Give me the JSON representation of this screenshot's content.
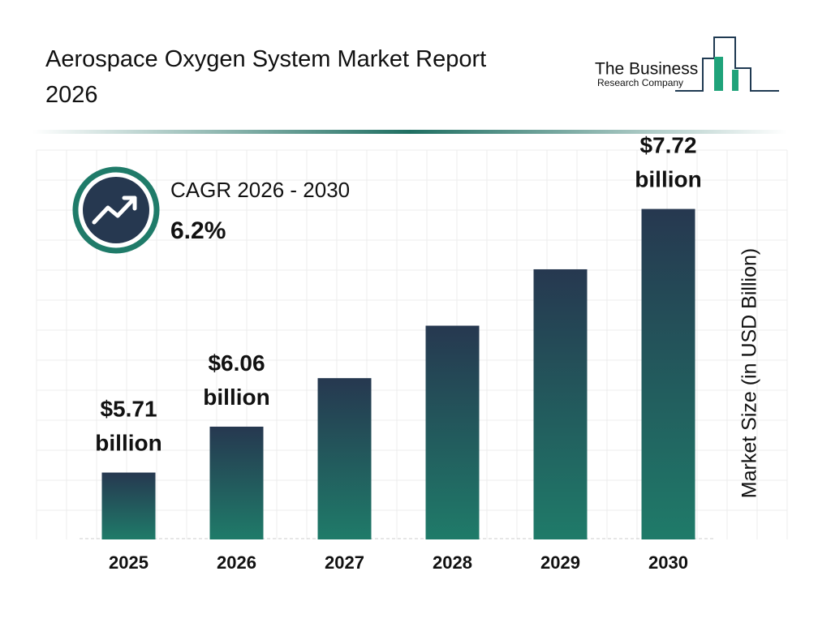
{
  "chart_data": {
    "type": "bar",
    "title": "Aerospace Oxygen System Market Report 2026",
    "logo": [
      "The Business",
      "Research Company"
    ],
    "cagr_label": "CAGR 2026 - 2030",
    "cagr_value": "6.2%",
    "y_axis_label": "Market Size (in USD Billion)",
    "categories": [
      "2025",
      "2026",
      "2027",
      "2028",
      "2029",
      "2030"
    ],
    "values": [
      5.71,
      6.06,
      6.43,
      6.83,
      7.26,
      7.72
    ],
    "value_labels": [
      "$5.71 billion",
      "$6.06 billion",
      null,
      null,
      null,
      "$7.72 billion"
    ],
    "colors": [
      "#263850",
      "#1f7b69"
    ],
    "ylim": [
      5.2,
      8.2
    ]
  }
}
